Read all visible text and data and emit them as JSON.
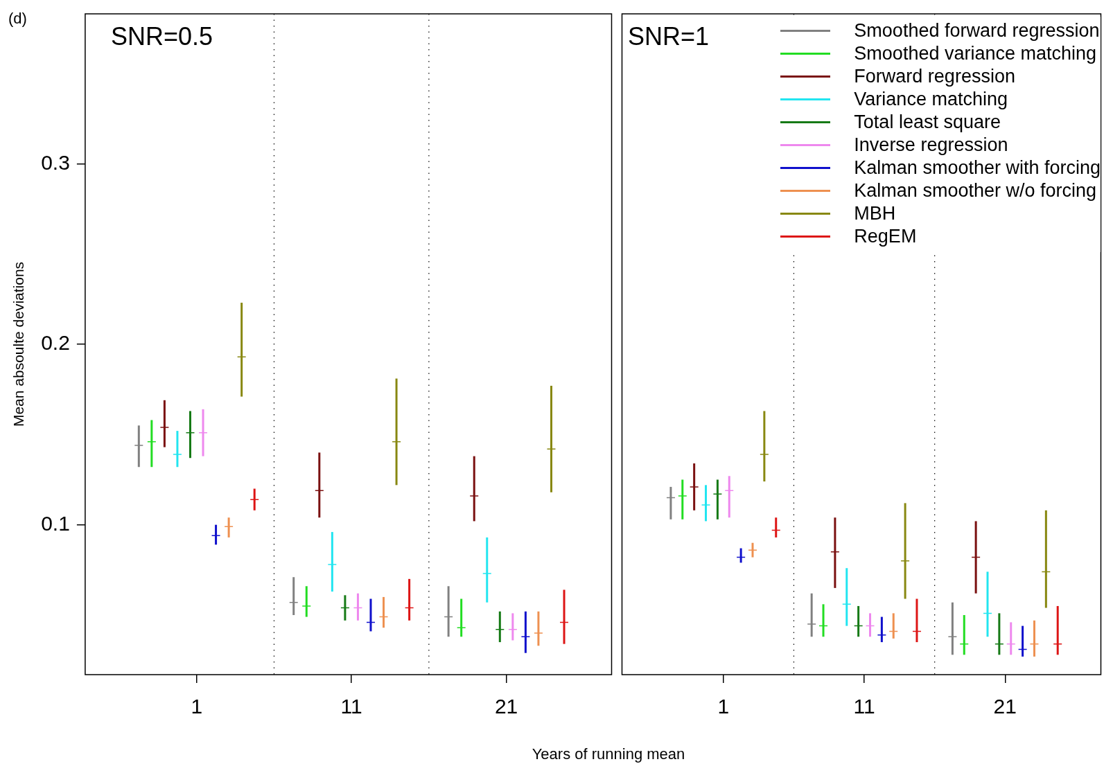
{
  "chart_data": [
    {
      "type": "scatter",
      "xlabel": "Years of running mean",
      "ylabel": "Mean absoulte deviations",
      "annotations": [
        "(d)",
        "SNR=0.5"
      ],
      "categories": [
        "1",
        "11",
        "21"
      ],
      "ylim": [
        0.017,
        0.383
      ],
      "yticks": [
        0.1,
        0.2,
        0.3
      ],
      "grid": "x",
      "marker": "cross",
      "series": [
        {
          "color": "#808080",
          "values": [
            0.144,
            0.057,
            0.049
          ],
          "errors": [
            [
              0.132,
              0.155
            ],
            [
              0.05,
              0.071
            ],
            [
              0.038,
              0.066
            ]
          ]
        },
        {
          "color": "#22dd22",
          "values": [
            0.146,
            0.055,
            0.043
          ],
          "errors": [
            [
              0.132,
              0.158
            ],
            [
              0.049,
              0.066
            ],
            [
              0.038,
              0.059
            ]
          ]
        },
        {
          "color": "#7a1010",
          "values": [
            0.154,
            0.119,
            0.116
          ],
          "errors": [
            [
              0.143,
              0.169
            ],
            [
              0.104,
              0.14
            ],
            [
              0.102,
              0.138
            ]
          ]
        },
        {
          "color": "#22e5f0",
          "values": [
            0.139,
            0.078,
            0.073
          ],
          "errors": [
            [
              0.132,
              0.152
            ],
            [
              0.063,
              0.096
            ],
            [
              0.057,
              0.093
            ]
          ]
        },
        {
          "color": "#167a16",
          "values": [
            0.151,
            0.054,
            0.042
          ],
          "errors": [
            [
              0.137,
              0.163
            ],
            [
              0.047,
              0.061
            ],
            [
              0.035,
              0.052
            ]
          ]
        },
        {
          "color": "#ee88ee",
          "values": [
            0.151,
            0.054,
            0.042
          ],
          "errors": [
            [
              0.138,
              0.164
            ],
            [
              0.047,
              0.062
            ],
            [
              0.036,
              0.051
            ]
          ]
        },
        {
          "color": "#1010cc",
          "values": [
            0.094,
            0.046,
            0.038
          ],
          "errors": [
            [
              0.089,
              0.1
            ],
            [
              0.041,
              0.059
            ],
            [
              0.029,
              0.052
            ]
          ]
        },
        {
          "color": "#ee9050",
          "values": [
            0.099,
            0.049,
            0.04
          ],
          "errors": [
            [
              0.093,
              0.104
            ],
            [
              0.043,
              0.06
            ],
            [
              0.033,
              0.052
            ]
          ]
        },
        {
          "color": "#888811",
          "values": [
            0.193,
            0.146,
            0.142
          ],
          "errors": [
            [
              0.171,
              0.223
            ],
            [
              0.122,
              0.181
            ],
            [
              0.118,
              0.177
            ]
          ]
        },
        {
          "color": "#dd1515",
          "values": [
            0.114,
            0.054,
            0.046
          ],
          "errors": [
            [
              0.108,
              0.12
            ],
            [
              0.047,
              0.07
            ],
            [
              0.034,
              0.064
            ]
          ]
        }
      ]
    },
    {
      "type": "scatter",
      "annotations": [
        "SNR=1"
      ],
      "categories": [
        "1",
        "11",
        "21"
      ],
      "ylim": [
        0.017,
        0.383
      ],
      "yticks": [
        0.1,
        0.2,
        0.3
      ],
      "tick_labels": "x",
      "grid": "x",
      "marker": "cross",
      "legend": "top right",
      "series": [
        {
          "name": "Smoothed forward regression",
          "color": "#808080",
          "values": [
            0.115,
            0.045,
            0.038
          ],
          "errors": [
            [
              0.103,
              0.121
            ],
            [
              0.038,
              0.062
            ],
            [
              0.028,
              0.057
            ]
          ]
        },
        {
          "name": "Smoothed variance matching",
          "color": "#22dd22",
          "values": [
            0.116,
            0.044,
            0.034
          ],
          "errors": [
            [
              0.103,
              0.125
            ],
            [
              0.038,
              0.056
            ],
            [
              0.028,
              0.05
            ]
          ]
        },
        {
          "name": "Forward regression",
          "color": "#7a1010",
          "values": [
            0.121,
            0.085,
            0.082
          ],
          "errors": [
            [
              0.108,
              0.134
            ],
            [
              0.065,
              0.104
            ],
            [
              0.062,
              0.102
            ]
          ]
        },
        {
          "name": "Variance matching",
          "color": "#22e5f0",
          "values": [
            0.111,
            0.056,
            0.051
          ],
          "errors": [
            [
              0.102,
              0.122
            ],
            [
              0.044,
              0.076
            ],
            [
              0.038,
              0.074
            ]
          ]
        },
        {
          "name": "Total least square",
          "color": "#167a16",
          "values": [
            0.117,
            0.044,
            0.034
          ],
          "errors": [
            [
              0.103,
              0.125
            ],
            [
              0.038,
              0.055
            ],
            [
              0.028,
              0.051
            ]
          ]
        },
        {
          "name": "Inverse regression",
          "color": "#ee88ee",
          "values": [
            0.119,
            0.044,
            0.034
          ],
          "errors": [
            [
              0.104,
              0.127
            ],
            [
              0.038,
              0.051
            ],
            [
              0.028,
              0.046
            ]
          ]
        },
        {
          "name": "Kalman smoother with forcing",
          "color": "#1010cc",
          "values": [
            0.082,
            0.039,
            0.031
          ],
          "errors": [
            [
              0.079,
              0.087
            ],
            [
              0.035,
              0.049
            ],
            [
              0.027,
              0.044
            ]
          ]
        },
        {
          "name": "Kalman smoother w/o forcing",
          "color": "#ee9050",
          "values": [
            0.086,
            0.041,
            0.034
          ],
          "errors": [
            [
              0.082,
              0.09
            ],
            [
              0.037,
              0.051
            ],
            [
              0.027,
              0.047
            ]
          ]
        },
        {
          "name": "MBH",
          "color": "#888811",
          "values": [
            0.139,
            0.08,
            0.074
          ],
          "errors": [
            [
              0.124,
              0.163
            ],
            [
              0.059,
              0.112
            ],
            [
              0.054,
              0.108
            ]
          ]
        },
        {
          "name": "RegEM",
          "color": "#dd1515",
          "values": [
            0.097,
            0.041,
            0.034
          ],
          "errors": [
            [
              0.093,
              0.104
            ],
            [
              0.035,
              0.059
            ],
            [
              0.028,
              0.055
            ]
          ]
        }
      ]
    }
  ]
}
